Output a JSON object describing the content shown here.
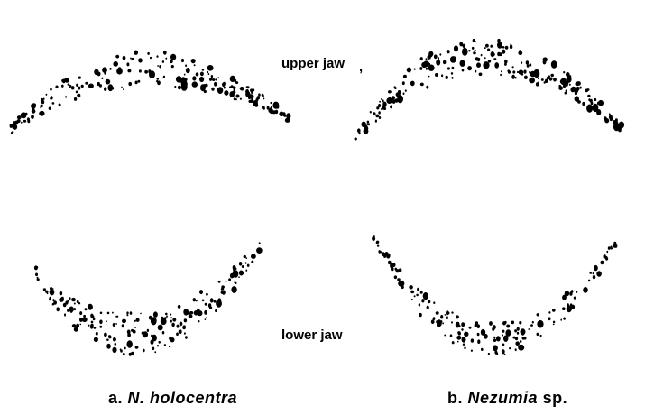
{
  "labels": {
    "upper": "upper jaw",
    "upper_mark": ",",
    "lower": "lower jaw"
  },
  "panels": [
    {
      "letter": "a.",
      "name": "N. holocentra"
    },
    {
      "letter": "b.",
      "name": "Nezumia",
      "suffix": "sp."
    }
  ]
}
